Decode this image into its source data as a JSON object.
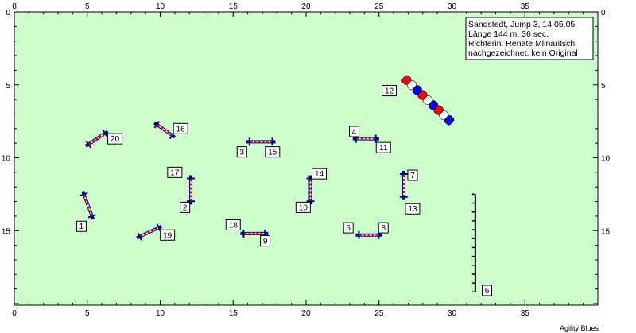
{
  "info": {
    "line1": "Sandstedt, Jump 3, 14.05.05",
    "line2": "Länge 144 m, 36 sec.",
    "line3": "Richterin: Renate Mlinaritsch",
    "line4": "nachgezeichnet, kein Original"
  },
  "footer": "Agility Blues",
  "axis": {
    "x_ticks": [
      "0",
      "5",
      "10",
      "15",
      "20",
      "25",
      "30",
      "35"
    ],
    "y_ticks": [
      "0",
      "5",
      "10",
      "15"
    ]
  },
  "colors": {
    "field": "#ccffcc",
    "post": "#000080",
    "bar_red": "#ff0000",
    "bar_white": "#ffffff",
    "tunnel_red": "#ff0000",
    "tunnel_blue": "#0000ff"
  },
  "obstacles": [
    {
      "id": "1",
      "type": "hurdle",
      "x1": 4.7,
      "y1": 12.3,
      "x2": 5.4,
      "y2": 14.2,
      "label": {
        "text": "1",
        "x": 4.6,
        "y": 14.7
      }
    },
    {
      "id": "2",
      "type": "hurdle",
      "x1": 12.1,
      "y1": 11.2,
      "x2": 12.1,
      "y2": 13.2,
      "label": {
        "text": "2",
        "x": 11.7,
        "y": 13.4
      }
    },
    {
      "id": "3",
      "type": "hurdle",
      "x1": 15.9,
      "y1": 8.9,
      "x2": 17.9,
      "y2": 8.9,
      "label": {
        "text": "3",
        "x": 15.6,
        "y": 9.6
      }
    },
    {
      "id": "4",
      "type": "hurdle",
      "x1": 23.2,
      "y1": 8.7,
      "x2": 25.0,
      "y2": 8.7,
      "label": {
        "text": "4",
        "x": 23.3,
        "y": 8.2
      }
    },
    {
      "id": "5",
      "type": "hurdle",
      "x1": 23.4,
      "y1": 15.3,
      "x2": 25.2,
      "y2": 15.3,
      "label": {
        "text": "5",
        "x": 22.9,
        "y": 14.8
      }
    },
    {
      "id": "6",
      "type": "weave",
      "x1": 31.6,
      "y1": 12.5,
      "x2": 31.6,
      "y2": 19.2,
      "poles": 12,
      "label": {
        "text": "6",
        "x": 32.4,
        "y": 19.1
      }
    },
    {
      "id": "7",
      "type": "hurdle",
      "x1": 26.7,
      "y1": 10.9,
      "x2": 26.7,
      "y2": 12.9,
      "label": {
        "text": "7",
        "x": 27.3,
        "y": 11.2
      }
    },
    {
      "id": "8",
      "type": "hurdle",
      "x1": 23.4,
      "y1": 15.3,
      "x2": 25.2,
      "y2": 15.3,
      "label": {
        "text": "8",
        "x": 25.3,
        "y": 14.8
      }
    },
    {
      "id": "9",
      "type": "hurdle",
      "x1": 15.5,
      "y1": 15.2,
      "x2": 17.4,
      "y2": 15.2,
      "label": {
        "text": "9",
        "x": 17.2,
        "y": 15.7
      }
    },
    {
      "id": "10",
      "type": "hurdle",
      "x1": 20.3,
      "y1": 11.2,
      "x2": 20.3,
      "y2": 13.2,
      "label": {
        "text": "10",
        "x": 19.8,
        "y": 13.4
      }
    },
    {
      "id": "11",
      "type": "hurdle",
      "x1": 23.2,
      "y1": 8.7,
      "x2": 25.0,
      "y2": 8.7,
      "label": {
        "text": "11",
        "x": 25.3,
        "y": 9.3
      }
    },
    {
      "id": "12",
      "type": "tunnel",
      "x1": 26.7,
      "y1": 4.5,
      "x2": 30.0,
      "y2": 7.6,
      "segments": 9,
      "label": {
        "text": "12",
        "x": 25.7,
        "y": 5.4
      }
    },
    {
      "id": "13",
      "type": "hurdle",
      "x1": 26.7,
      "y1": 10.9,
      "x2": 26.7,
      "y2": 12.9,
      "label": {
        "text": "13",
        "x": 27.3,
        "y": 13.5
      }
    },
    {
      "id": "14",
      "type": "hurdle",
      "x1": 20.3,
      "y1": 11.2,
      "x2": 20.3,
      "y2": 13.2,
      "label": {
        "text": "14",
        "x": 20.9,
        "y": 11.1
      }
    },
    {
      "id": "15",
      "type": "hurdle",
      "x1": 15.9,
      "y1": 8.9,
      "x2": 17.9,
      "y2": 8.9,
      "label": {
        "text": "15",
        "x": 17.7,
        "y": 9.6
      }
    },
    {
      "id": "16",
      "type": "hurdle",
      "x1": 9.6,
      "y1": 7.6,
      "x2": 11.0,
      "y2": 8.6,
      "label": {
        "text": "16",
        "x": 11.4,
        "y": 8.0
      }
    },
    {
      "id": "17",
      "type": "hurdle",
      "x1": 12.1,
      "y1": 11.2,
      "x2": 12.1,
      "y2": 13.2,
      "label": {
        "text": "17",
        "x": 11.0,
        "y": 11.0
      }
    },
    {
      "id": "18",
      "type": "hurdle",
      "x1": 15.5,
      "y1": 15.2,
      "x2": 17.4,
      "y2": 15.2,
      "label": {
        "text": "18",
        "x": 15.0,
        "y": 14.6
      }
    },
    {
      "id": "19",
      "type": "hurdle",
      "x1": 8.4,
      "y1": 15.5,
      "x2": 10.1,
      "y2": 14.7,
      "label": {
        "text": "19",
        "x": 10.5,
        "y": 15.3
      }
    },
    {
      "id": "20",
      "type": "hurdle",
      "x1": 4.9,
      "y1": 9.2,
      "x2": 6.4,
      "y2": 8.2,
      "label": {
        "text": "20",
        "x": 6.9,
        "y": 8.7
      }
    }
  ]
}
